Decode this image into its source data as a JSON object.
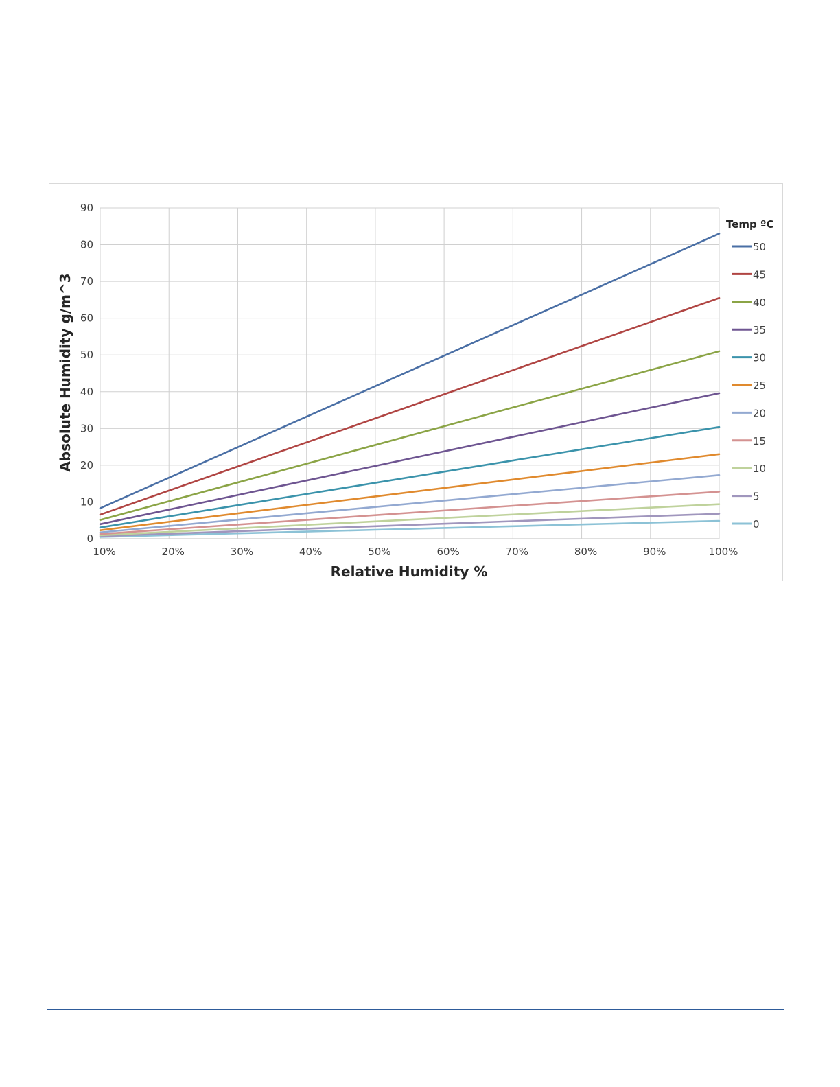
{
  "chart_data": {
    "type": "line",
    "title": "",
    "xlabel": "Relative Humidity %",
    "ylabel": "Absolute Humidity g/m^3",
    "x": [
      10,
      20,
      30,
      40,
      50,
      60,
      70,
      80,
      90,
      100
    ],
    "x_tick_labels": [
      "10%",
      "20%",
      "30%",
      "40%",
      "50%",
      "60%",
      "70%",
      "80%",
      "90%",
      "100%"
    ],
    "xlim": [
      10,
      100
    ],
    "ylim": [
      0,
      90
    ],
    "y_ticks": [
      0,
      10,
      20,
      30,
      40,
      50,
      60,
      70,
      80,
      90
    ],
    "grid": true,
    "legend_title": "Temp ºC",
    "legend_position": "right",
    "series": [
      {
        "name": "50",
        "color": "#4a6fa5",
        "values": [
          8.3,
          16.6,
          24.9,
          33.2,
          41.5,
          49.8,
          58.1,
          66.4,
          74.7,
          83.0
        ]
      },
      {
        "name": "45",
        "color": "#b04543",
        "values": [
          6.55,
          13.1,
          19.65,
          26.2,
          32.75,
          39.3,
          45.85,
          52.4,
          58.95,
          65.5
        ]
      },
      {
        "name": "40",
        "color": "#8ba446",
        "values": [
          5.1,
          10.2,
          15.3,
          20.4,
          25.5,
          30.6,
          35.7,
          40.8,
          45.9,
          51.0
        ]
      },
      {
        "name": "35",
        "color": "#6e5591",
        "values": [
          3.96,
          7.92,
          11.88,
          15.84,
          19.8,
          23.76,
          27.72,
          31.68,
          35.64,
          39.6
        ]
      },
      {
        "name": "30",
        "color": "#3b93ab",
        "values": [
          3.04,
          6.08,
          9.12,
          12.16,
          15.2,
          18.24,
          21.28,
          24.32,
          27.36,
          30.4
        ]
      },
      {
        "name": "25",
        "color": "#e08a2e",
        "values": [
          2.3,
          4.6,
          6.9,
          9.2,
          11.5,
          13.8,
          16.1,
          18.4,
          20.7,
          23.0
        ]
      },
      {
        "name": "20",
        "color": "#93a9d1",
        "values": [
          1.73,
          3.46,
          5.19,
          6.92,
          8.65,
          10.38,
          12.11,
          13.84,
          15.57,
          17.3
        ]
      },
      {
        "name": "15",
        "color": "#d49291",
        "values": [
          1.28,
          2.56,
          3.84,
          5.12,
          6.4,
          7.68,
          8.96,
          10.24,
          11.52,
          12.8
        ]
      },
      {
        "name": "10",
        "color": "#bfd29c",
        "values": [
          0.94,
          1.88,
          2.82,
          3.76,
          4.7,
          5.64,
          6.58,
          7.52,
          8.46,
          9.4
        ]
      },
      {
        "name": "5",
        "color": "#a096bd",
        "values": [
          0.68,
          1.36,
          2.04,
          2.72,
          3.4,
          4.08,
          4.76,
          5.44,
          6.12,
          6.8
        ]
      },
      {
        "name": "0",
        "color": "#8cc2d6",
        "values": [
          0.485,
          0.97,
          1.455,
          1.94,
          2.425,
          2.91,
          3.395,
          3.88,
          4.365,
          4.85
        ]
      }
    ]
  }
}
